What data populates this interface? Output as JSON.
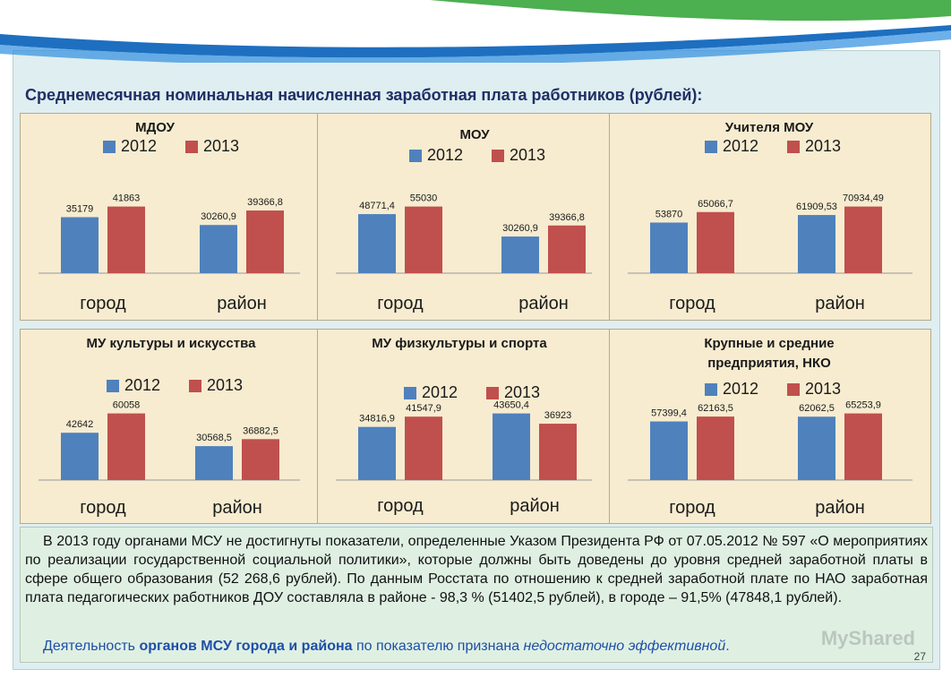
{
  "title": "Среднемесячная номинальная начисленная заработная плата работников (рублей):",
  "legend": [
    "2012",
    "2013"
  ],
  "colors": {
    "series_2012": "#4f81bd",
    "series_2013": "#c0504d",
    "panel_bg": "#f7ecd0",
    "title": "#1f2f66",
    "highlight": "#1f4ea8"
  },
  "chart_data": [
    {
      "type": "bar",
      "title": "МДОУ",
      "categories": [
        "город",
        "район"
      ],
      "series": [
        {
          "name": "2012",
          "values": [
            35179,
            30260.9
          ],
          "labels": [
            "35179",
            "30260,9"
          ]
        },
        {
          "name": "2013",
          "values": [
            41863,
            39366.8
          ],
          "labels": [
            "41863",
            "39366,8"
          ]
        }
      ]
    },
    {
      "type": "bar",
      "title": "МОУ",
      "categories": [
        "город",
        "район"
      ],
      "series": [
        {
          "name": "2012",
          "values": [
            48771.4,
            30260.9
          ],
          "labels": [
            "48771,4",
            "30260,9"
          ]
        },
        {
          "name": "2013",
          "values": [
            55030,
            39366.8
          ],
          "labels": [
            "55030",
            "39366,8"
          ]
        }
      ]
    },
    {
      "type": "bar",
      "title": "Учителя МОУ",
      "categories": [
        "город",
        "район"
      ],
      "series": [
        {
          "name": "2012",
          "values": [
            53870,
            61909.53
          ],
          "labels": [
            "53870",
            "61909,53"
          ]
        },
        {
          "name": "2013",
          "values": [
            65066.7,
            70934.49
          ],
          "labels": [
            "65066,7",
            "70934,49"
          ]
        }
      ]
    },
    {
      "type": "bar",
      "title": "МУ культуры и искусства",
      "categories": [
        "город",
        "район"
      ],
      "series": [
        {
          "name": "2012",
          "values": [
            42642,
            30568.5
          ],
          "labels": [
            "42642",
            "30568,5"
          ]
        },
        {
          "name": "2013",
          "values": [
            60058,
            36882.5
          ],
          "labels": [
            "60058",
            "36882,5"
          ]
        }
      ]
    },
    {
      "type": "bar",
      "title": "МУ физкультуры и спорта",
      "categories": [
        "город",
        "район"
      ],
      "series": [
        {
          "name": "2012",
          "values": [
            34816.9,
            43650.4
          ],
          "labels": [
            "34816,9",
            "43650,4"
          ]
        },
        {
          "name": "2013",
          "values": [
            41547.9,
            36923
          ],
          "labels": [
            "41547,9",
            "36923"
          ]
        }
      ]
    },
    {
      "type": "bar",
      "title": "Крупные и средние предприятия, НКО",
      "categories": [
        "город",
        "район"
      ],
      "series": [
        {
          "name": "2012",
          "values": [
            57399.4,
            62062.5
          ],
          "labels": [
            "57399,4",
            "62062,5"
          ]
        },
        {
          "name": "2013",
          "values": [
            62163.5,
            65253.9
          ],
          "labels": [
            "62163,5",
            "65253,9"
          ]
        }
      ]
    }
  ],
  "summary": {
    "para1": "В 2013 году органами МСУ не достигнуты показатели, определенные Указом Президента РФ от 07.05.2012 № 597 «О мероприятиях по реализации государственной социальной политики», которые должны быть доведены до уровня средней заработной платы в сфере общего образования (52 268,6 рублей). По данным Росстата по отношению к средней заработной плате по НАО заработная плата педагогических работников ДОУ составляла в районе - 98,3 % (51402,5 рублей), в городе – 91,5% (47848,1 рублей).",
    "para2_a": "Деятельность ",
    "para2_b": "органов МСУ города и района",
    "para2_c": " по показателю признана ",
    "para2_d": "недостаточно эффективной",
    "para2_e": "."
  },
  "page_number": "27",
  "watermark": "MyShared"
}
